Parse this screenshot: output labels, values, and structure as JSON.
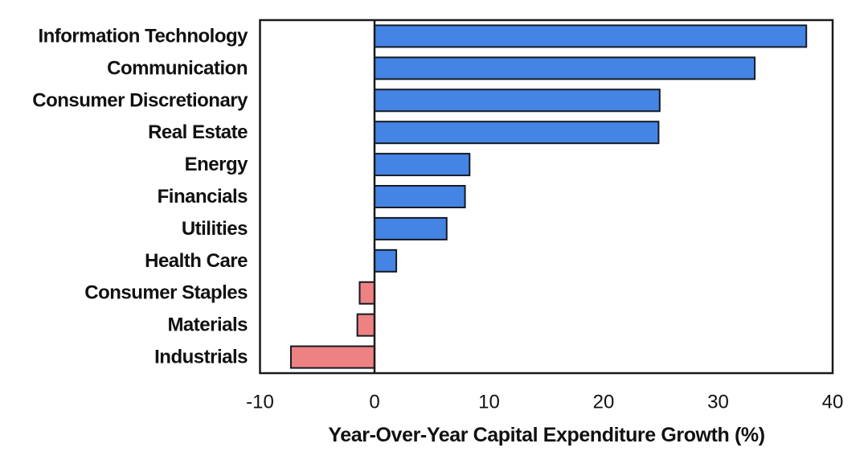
{
  "chart_data": {
    "type": "bar",
    "orientation": "horizontal",
    "title": "",
    "xlabel": "Year-Over-Year Capital Expenditure Growth (%)",
    "ylabel": "",
    "categories": [
      "Information Technology",
      "Communication",
      "Consumer Discretionary",
      "Real Estate",
      "Energy",
      "Financials",
      "Utilities",
      "Health Care",
      "Consumer Staples",
      "Materials",
      "Industrials"
    ],
    "values": [
      37.7,
      33.2,
      24.9,
      24.8,
      8.3,
      7.9,
      6.3,
      1.9,
      -1.3,
      -1.5,
      -7.3
    ],
    "xlim": [
      -10,
      40
    ],
    "xticks": [
      -10,
      0,
      10,
      20,
      30,
      40
    ],
    "grid": false,
    "legend": "none",
    "zero_line": true,
    "colors": {
      "positive_bar": "#4484e4",
      "negative_bar": "#ee8282",
      "bar_edge": "#141a26",
      "plot_border": "#1a1a1a",
      "background": "#ffffff",
      "text": "#111111"
    }
  }
}
